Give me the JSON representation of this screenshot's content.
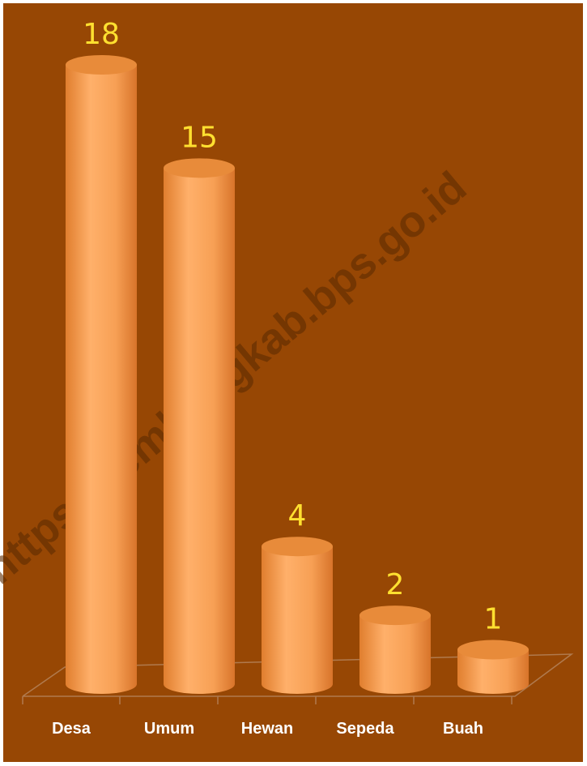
{
  "chart_data": {
    "type": "bar",
    "categories": [
      "Desa",
      "Umum",
      "Hewan",
      "Sepeda",
      "Buah"
    ],
    "values": [
      18,
      15,
      4,
      2,
      1
    ],
    "title": "",
    "xlabel": "",
    "ylabel": "",
    "ylim": [
      0,
      18
    ],
    "grid": false,
    "legend": "none",
    "style": "3d-cylinder"
  },
  "watermark": "https://rembangkab.bps.go.id",
  "colors": {
    "background": "#974704",
    "bar_body": "#F59A4A",
    "bar_highlight": "#FFB777",
    "bar_top": "#E88B3A",
    "value_label": "#FFE030",
    "category_label": "#FFFFFF",
    "floor_line": "#B07A4E"
  }
}
